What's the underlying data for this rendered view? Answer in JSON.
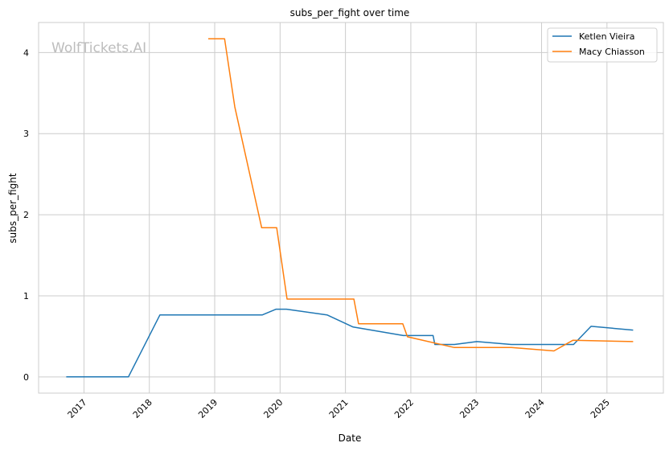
{
  "watermark": "WolfTickets.AI",
  "chart_data": {
    "type": "line",
    "title": "subs_per_fight over time",
    "xlabel": "Date",
    "ylabel": "subs_per_fight",
    "xlim": [
      "2016-04-22",
      "2025-11-12"
    ],
    "ylim": [
      -0.2,
      4.37
    ],
    "xticks": [
      "2017",
      "2018",
      "2019",
      "2020",
      "2021",
      "2022",
      "2023",
      "2024",
      "2025"
    ],
    "yticks": [
      0,
      1,
      2,
      3,
      4
    ],
    "grid": true,
    "legend_position": "top-right",
    "series": [
      {
        "name": "Ketlen Vieira",
        "color": "#1f77b4",
        "points": [
          [
            "2016-09-24",
            0
          ],
          [
            "2017-09-06",
            0
          ],
          [
            "2018-03-01",
            0.765
          ],
          [
            "2019-09-24",
            0.765
          ],
          [
            "2019-12-10",
            0.835
          ],
          [
            "2020-02-06",
            0.835
          ],
          [
            "2020-09-20",
            0.765
          ],
          [
            "2021-02-13",
            0.615
          ],
          [
            "2021-11-20",
            0.51
          ],
          [
            "2022-05-05",
            0.51
          ],
          [
            "2022-05-15",
            0.4
          ],
          [
            "2022-09-01",
            0.4
          ],
          [
            "2023-01-05",
            0.435
          ],
          [
            "2023-07-16",
            0.4
          ],
          [
            "2024-06-28",
            0.4
          ],
          [
            "2024-10-04",
            0.624
          ],
          [
            "2025-05-27",
            0.577
          ]
        ]
      },
      {
        "name": "Macy Chiasson",
        "color": "#ff7f0e",
        "points": [
          [
            "2018-11-26",
            4.17
          ],
          [
            "2019-02-25",
            4.17
          ],
          [
            "2019-04-23",
            3.33
          ],
          [
            "2019-09-20",
            1.84
          ],
          [
            "2019-12-13",
            1.84
          ],
          [
            "2020-02-09",
            0.96
          ],
          [
            "2021-02-17",
            0.96
          ],
          [
            "2021-03-15",
            0.656
          ],
          [
            "2021-11-17",
            0.656
          ],
          [
            "2021-12-13",
            0.495
          ],
          [
            "2022-09-01",
            0.362
          ],
          [
            "2023-07-16",
            0.362
          ],
          [
            "2024-03-10",
            0.32
          ],
          [
            "2024-06-24",
            0.451
          ],
          [
            "2025-05-27",
            0.435
          ]
        ]
      }
    ]
  }
}
